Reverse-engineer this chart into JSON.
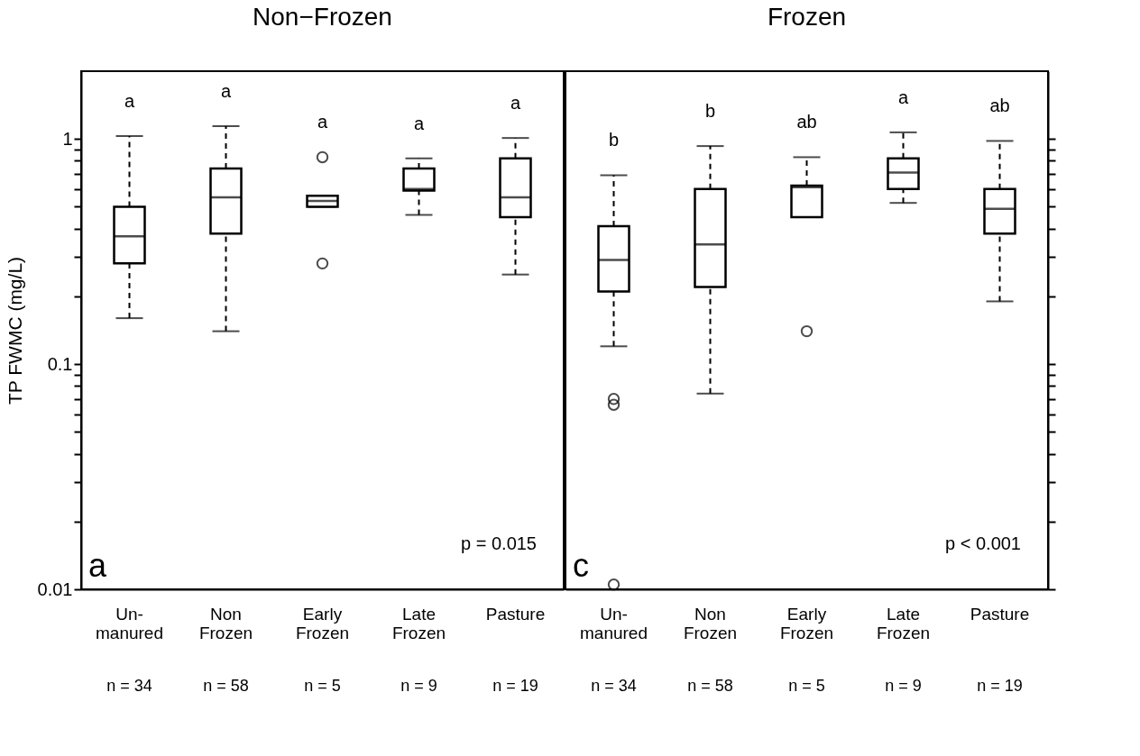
{
  "chart_data": [
    {
      "type": "box",
      "title": "Non−Frozen",
      "ylabel": "TP FWMC (mg/L)",
      "log": true,
      "grid": false,
      "tick_labels": true,
      "categories": [
        "Un-manured",
        "Non Frozen",
        "Early Frozen",
        "Late Frozen",
        "Pasture"
      ],
      "ylim": [
        0.01,
        2
      ],
      "yticks": [
        0.01,
        {
          "value": 0.02,
          "label": null
        },
        {
          "value": 0.03,
          "label": null
        },
        {
          "value": 0.04,
          "label": null
        },
        {
          "value": 0.05,
          "label": null
        },
        {
          "value": 0.06,
          "label": null
        },
        {
          "value": 0.07,
          "label": null
        },
        {
          "value": 0.08,
          "label": null
        },
        {
          "value": 0.09,
          "label": null
        },
        0.1,
        {
          "value": 0.2,
          "label": null
        },
        {
          "value": 0.3,
          "label": null
        },
        {
          "value": 0.4,
          "label": null
        },
        {
          "value": 0.5,
          "label": null
        },
        {
          "value": 0.6,
          "label": null
        },
        {
          "value": 0.7,
          "label": null
        },
        {
          "value": 0.8,
          "label": null
        },
        {
          "value": 0.9,
          "label": null
        },
        1
      ],
      "boxes": [
        {
          "low": 0.16,
          "q1": 0.28,
          "median": 0.37,
          "q3": 0.5,
          "high": 1.03
        },
        {
          "low": 0.14,
          "q1": 0.38,
          "median": 0.55,
          "q3": 0.74,
          "high": 1.14
        },
        {
          "low": 0.5,
          "q1": 0.5,
          "median": 0.53,
          "q3": 0.56,
          "high": 0.56,
          "outliers": [
            0.83,
            0.28
          ]
        },
        {
          "low": 0.46,
          "q1": 0.59,
          "median": 0.6,
          "q3": 0.74,
          "high": 0.82
        },
        {
          "low": 0.25,
          "q1": 0.45,
          "median": 0.55,
          "q3": 0.82,
          "high": 1.01
        }
      ],
      "annotations": [
        "a",
        "a",
        "a",
        "a",
        "a",
        "n = 34",
        "n = 58",
        "n = 5",
        "n = 9",
        "n = 19",
        "a",
        "p = 0.015"
      ]
    },
    {
      "type": "box",
      "title": "Frozen",
      "log": true,
      "grid": false,
      "tick_labels": "x",
      "categories": [
        "Un-manured",
        "Non Frozen",
        "Early Frozen",
        "Late Frozen",
        "Pasture"
      ],
      "ylim": [
        0.01,
        2
      ],
      "yticks": [
        0.01,
        {
          "value": 0.02,
          "label": null
        },
        {
          "value": 0.03,
          "label": null
        },
        {
          "value": 0.04,
          "label": null
        },
        {
          "value": 0.05,
          "label": null
        },
        {
          "value": 0.06,
          "label": null
        },
        {
          "value": 0.07,
          "label": null
        },
        {
          "value": 0.08,
          "label": null
        },
        {
          "value": 0.09,
          "label": null
        },
        0.1,
        {
          "value": 0.2,
          "label": null
        },
        {
          "value": 0.3,
          "label": null
        },
        {
          "value": 0.4,
          "label": null
        },
        {
          "value": 0.5,
          "label": null
        },
        {
          "value": 0.6,
          "label": null
        },
        {
          "value": 0.7,
          "label": null
        },
        {
          "value": 0.8,
          "label": null
        },
        {
          "value": 0.9,
          "label": null
        },
        1
      ],
      "boxes": [
        {
          "low": 0.12,
          "q1": 0.21,
          "median": 0.29,
          "q3": 0.41,
          "high": 0.69,
          "outliers": [
            0.07,
            0.066,
            0.0105
          ]
        },
        {
          "low": 0.074,
          "q1": 0.22,
          "median": 0.34,
          "q3": 0.6,
          "high": 0.93
        },
        {
          "low": 0.45,
          "q1": 0.45,
          "median": 0.61,
          "q3": 0.62,
          "high": 0.83,
          "outliers": [
            0.14
          ]
        },
        {
          "low": 0.52,
          "q1": 0.6,
          "median": 0.71,
          "q3": 0.82,
          "high": 1.07
        },
        {
          "low": 0.19,
          "q1": 0.38,
          "median": 0.49,
          "q3": 0.6,
          "high": 0.98
        }
      ],
      "annotations": [
        "b",
        "b",
        "ab",
        "a",
        "ab",
        "n = 34",
        "n = 58",
        "n = 5",
        "n = 9",
        "n = 19",
        "c",
        "p < 0.001"
      ]
    }
  ]
}
